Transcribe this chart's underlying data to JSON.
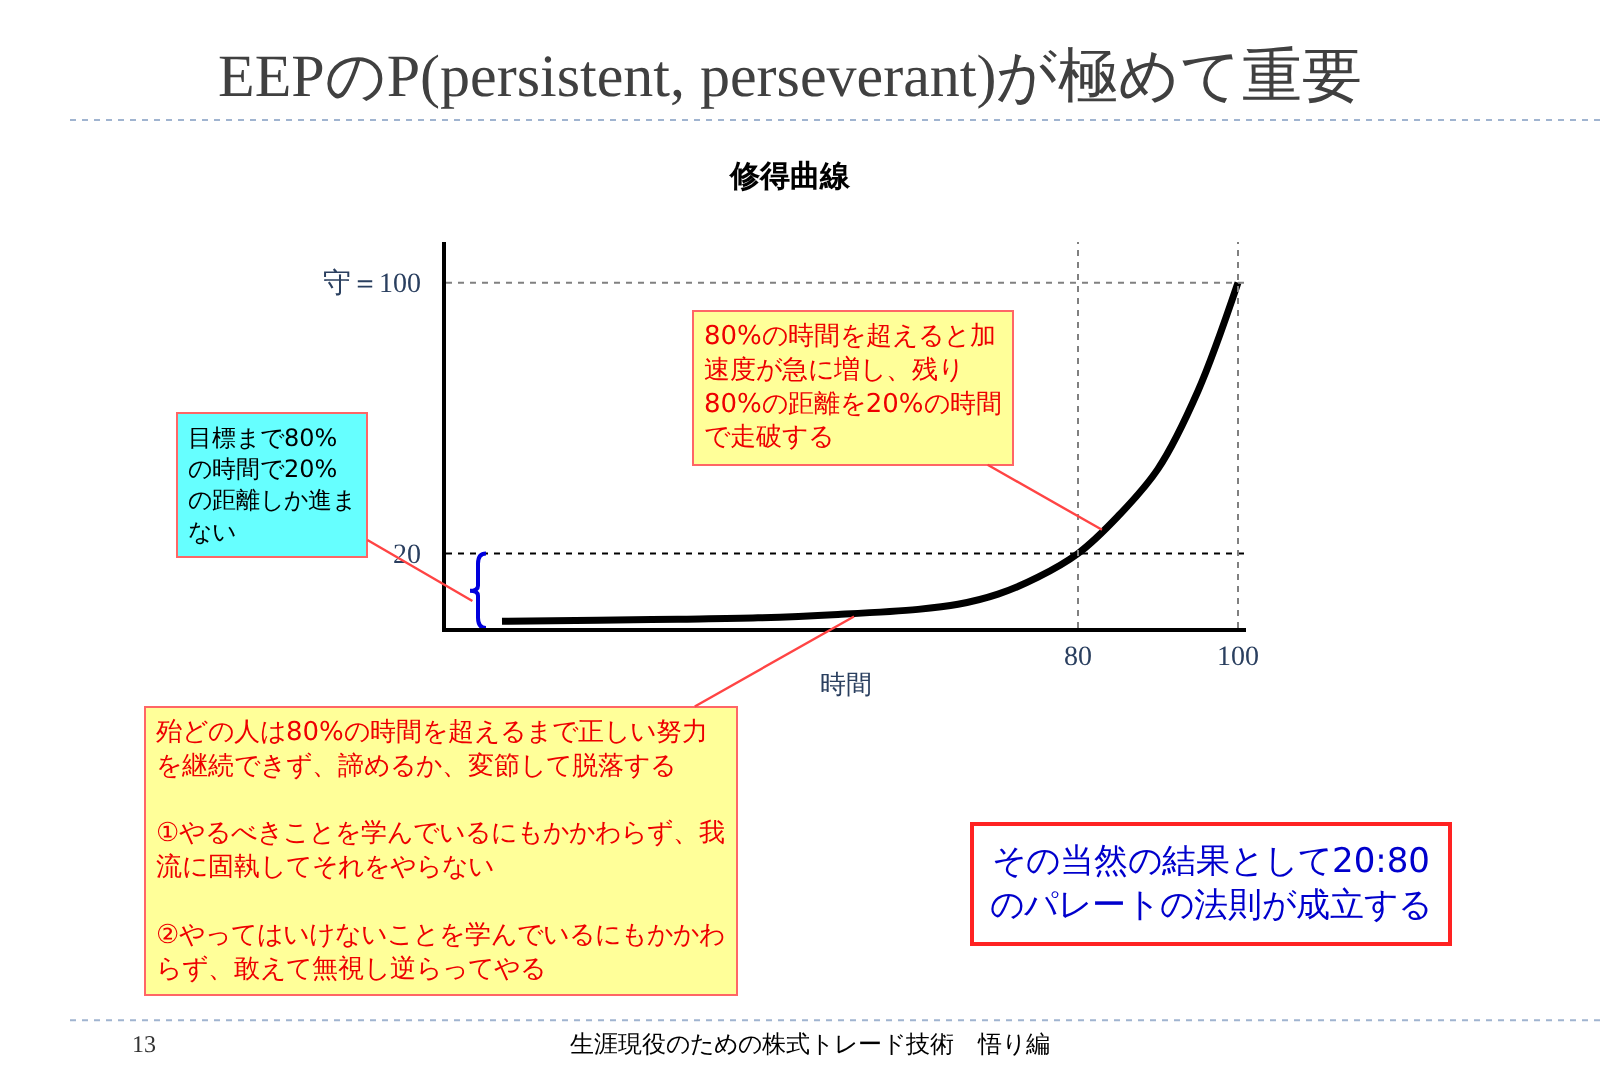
{
  "chart_data": {
    "type": "line",
    "title": "EEPのP(persistent, perseverant)が極めて重要",
    "subtitle": "修得曲線",
    "xlabel": "時間",
    "x": [
      8,
      20,
      30,
      40,
      50,
      60,
      65,
      70,
      75,
      80,
      85,
      90,
      95,
      100
    ],
    "series": [
      {
        "color": "#000000",
        "values": [
          0,
          0.3,
          0.6,
          1,
          2,
          3.5,
          5,
          8,
          13,
          20,
          31,
          45,
          68,
          100
        ]
      }
    ],
    "xlim": [
      1,
      101
    ],
    "ylim": [
      -2,
      112
    ],
    "xticks": [
      80,
      100
    ],
    "yticks": [
      {
        "value": 20,
        "label": "20"
      },
      {
        "value": 100,
        "label": "守＝100"
      }
    ],
    "ref_lines": [
      {
        "axis": "y",
        "value": 20,
        "line_style": "dotted",
        "color": "#000000"
      },
      {
        "axis": "y",
        "value": 100,
        "line_style": "dotted",
        "color": "#808080"
      },
      {
        "axis": "x",
        "value": 80,
        "line_style": "dotted",
        "color": "#808080"
      },
      {
        "axis": "x",
        "value": 100,
        "line_style": "dotted",
        "color": "#808080"
      }
    ],
    "annotations": [
      "目標まで80%の時間で20%の距離しか進まない",
      {
        "text": "80%の時間を超えると加速度が急に増し、残り80%の距離を20%の時間で走破する",
        "x": 83,
        "y": 27
      },
      "殆どの人は80%の時間を超えるまで正しい努力を継続できず、諦めるか、変節して脱落する\n①やるべきことを学んでいるにもかかわらず、我流に固執してそれをやらない\n②やってはいけないことを学んでいるにもかかわらず、敢えて無視し逆らってやる",
      "その当然の結果として20:80のパレートの法則が成立する",
      "13",
      "生涯現役のための株式トレード技術　悟り編"
    ],
    "marker": "none",
    "line_style": "solid"
  }
}
